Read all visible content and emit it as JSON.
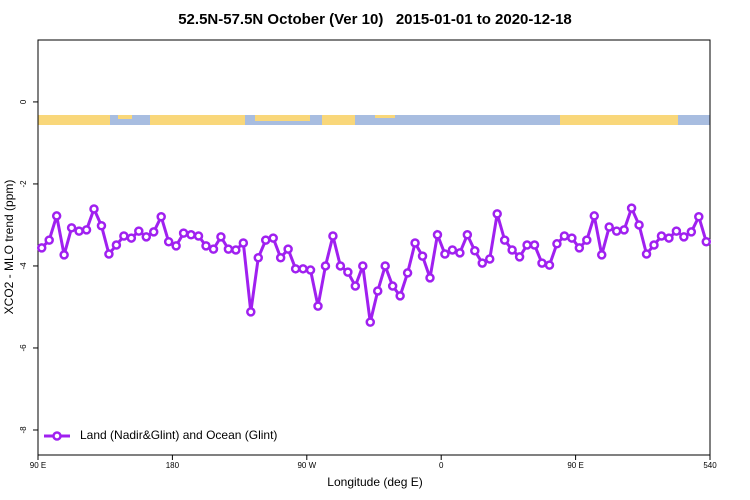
{
  "chart_data": {
    "type": "line",
    "title": "52.5N-57.5N October (Ver 10)   2015-01-01 to 2020-12-18",
    "x_label": "Longitude (deg E)",
    "y_label": "XCO2 - MLO trend (ppm)",
    "x": [
      92.5,
      97.5,
      102.5,
      107.5,
      112.5,
      117.5,
      122.5,
      127.5,
      132.5,
      137.5,
      142.5,
      147.5,
      152.5,
      157.5,
      162.5,
      167.5,
      172.5,
      177.5,
      182.5,
      187.5,
      192.5,
      197.5,
      202.5,
      207.5,
      212.5,
      217.5,
      222.5,
      227.5,
      232.5,
      237.5,
      242.5,
      247.5,
      252.5,
      257.5,
      262.5,
      267.5,
      272.5,
      277.5,
      282.5,
      287.5,
      292.5,
      297.5,
      302.5,
      307.5,
      312.5,
      317.5,
      322.5,
      327.5,
      332.5,
      337.5,
      342.5,
      347.5,
      352.5,
      357.5,
      362.5,
      367.5,
      372.5,
      377.5,
      382.5,
      387.5,
      392.5,
      397.5,
      402.5,
      407.5,
      412.5,
      417.5,
      422.5,
      427.5,
      432.5,
      437.5,
      442.5,
      447.5,
      452.5,
      457.5,
      462.5,
      467.5,
      472.5,
      477.5,
      482.5,
      487.5,
      492.5,
      497.5,
      502.5,
      507.5,
      512.5,
      517.5,
      522.5,
      527.5,
      532.5,
      537.5
    ],
    "series": [
      {
        "name": "Land (Nadir&Glint) and Ocean (Glint)",
        "color": "#a020f0",
        "values": [
          -3.56,
          -3.37,
          -2.78,
          -3.73,
          -3.07,
          -3.15,
          -3.12,
          -2.61,
          -3.02,
          -3.71,
          -3.49,
          -3.27,
          -3.32,
          -3.15,
          -3.29,
          -3.17,
          -2.8,
          -3.41,
          -3.51,
          -3.2,
          -3.24,
          -3.27,
          -3.51,
          -3.59,
          -3.29,
          -3.59,
          -3.61,
          -3.44,
          -5.12,
          -3.8,
          -3.37,
          -3.32,
          -3.8,
          -3.59,
          -4.07,
          -4.07,
          -4.1,
          -4.98,
          -4.0,
          -3.27,
          -4.0,
          -4.15,
          -4.49,
          -4.0,
          -5.37,
          -4.61,
          -4.0,
          -4.49,
          -4.73,
          -4.17,
          -3.44,
          -3.76,
          -4.29,
          -3.24,
          -3.71,
          -3.61,
          -3.68,
          -3.24,
          -3.63,
          -3.93,
          -3.83,
          -2.73,
          -3.37,
          -3.61,
          -3.78,
          -3.49,
          -3.49,
          -3.93,
          -3.98,
          -3.46,
          -3.27,
          -3.32,
          -3.56,
          -3.37,
          -2.78,
          -3.73,
          -3.05,
          -3.15,
          -3.12,
          -2.59,
          -3.0,
          -3.71,
          -3.49,
          -3.27,
          -3.32,
          -3.15,
          -3.29,
          -3.17,
          -2.8,
          -3.41
        ]
      }
    ],
    "xlim": [
      90,
      540
    ],
    "xticks": [
      {
        "value": 90,
        "label": "90 E"
      },
      180,
      {
        "value": 270,
        "label": "90 W"
      },
      {
        "value": 360,
        "label": "0"
      },
      {
        "value": 450,
        "label": "90 E"
      },
      540
    ],
    "ylim": [
      -8.61,
      1.51
    ],
    "yticks": [
      0,
      -2,
      -4,
      -6,
      -8
    ],
    "legend": "bottom-left"
  }
}
